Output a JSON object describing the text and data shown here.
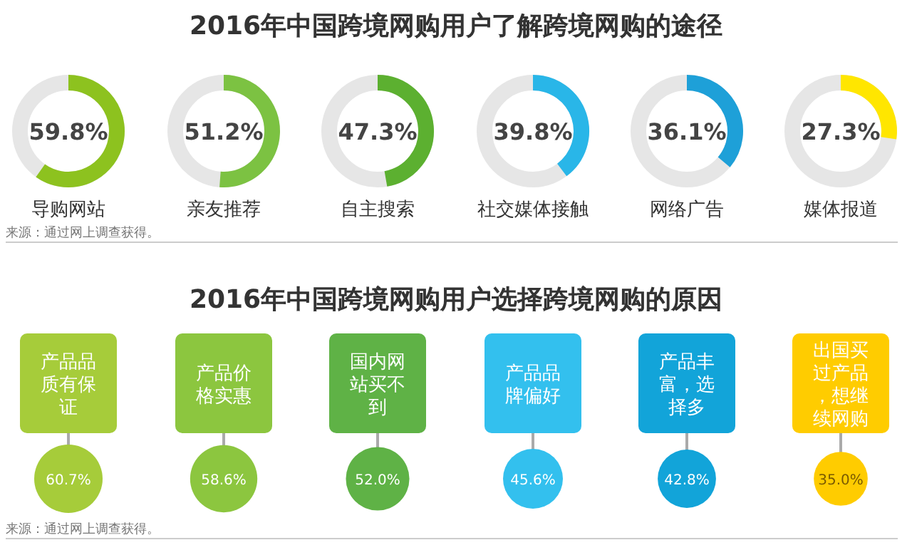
{
  "chart_data": [
    {
      "type": "other",
      "title": "2016年中国跨境网购用户了解跨境网购的途径",
      "categories": [
        "导购网站",
        "亲友推荐",
        "自主搜索",
        "社交媒体接触",
        "网络广告",
        "媒体报道"
      ],
      "values": [
        59.8,
        51.2,
        47.3,
        39.8,
        36.1,
        27.3
      ],
      "value_labels": [
        "59.8%",
        "51.2%",
        "47.3%",
        "39.8%",
        "36.1%",
        "27.3%"
      ],
      "colors": [
        "#8dc21f",
        "#7cc242",
        "#5cb030",
        "#29b6e8",
        "#1ea0d8",
        "#ffe600"
      ],
      "annotations": [
        "来源：通过网上调查获得。"
      ]
    },
    {
      "type": "other",
      "title": "2016年中国跨境网购用户选择跨境网购的原因",
      "categories": [
        "产品品质有保证",
        "产品价格实惠",
        "国内网站买不到",
        "产品品牌偏好",
        "产品丰富，选择多",
        "出国买过产品，想继续网购"
      ],
      "values": [
        60.7,
        58.6,
        52.0,
        45.6,
        42.8,
        35.0
      ],
      "value_labels": [
        "60.7%",
        "58.6%",
        "52.0%",
        "45.6%",
        "42.8%",
        "35.0%"
      ],
      "colors": [
        "#a6cc3a",
        "#8cc63f",
        "#5fb246",
        "#33c0ee",
        "#12a4d9",
        "#ffcc00"
      ],
      "annotations": [
        "来源：通过网上调查获得。"
      ]
    }
  ]
}
